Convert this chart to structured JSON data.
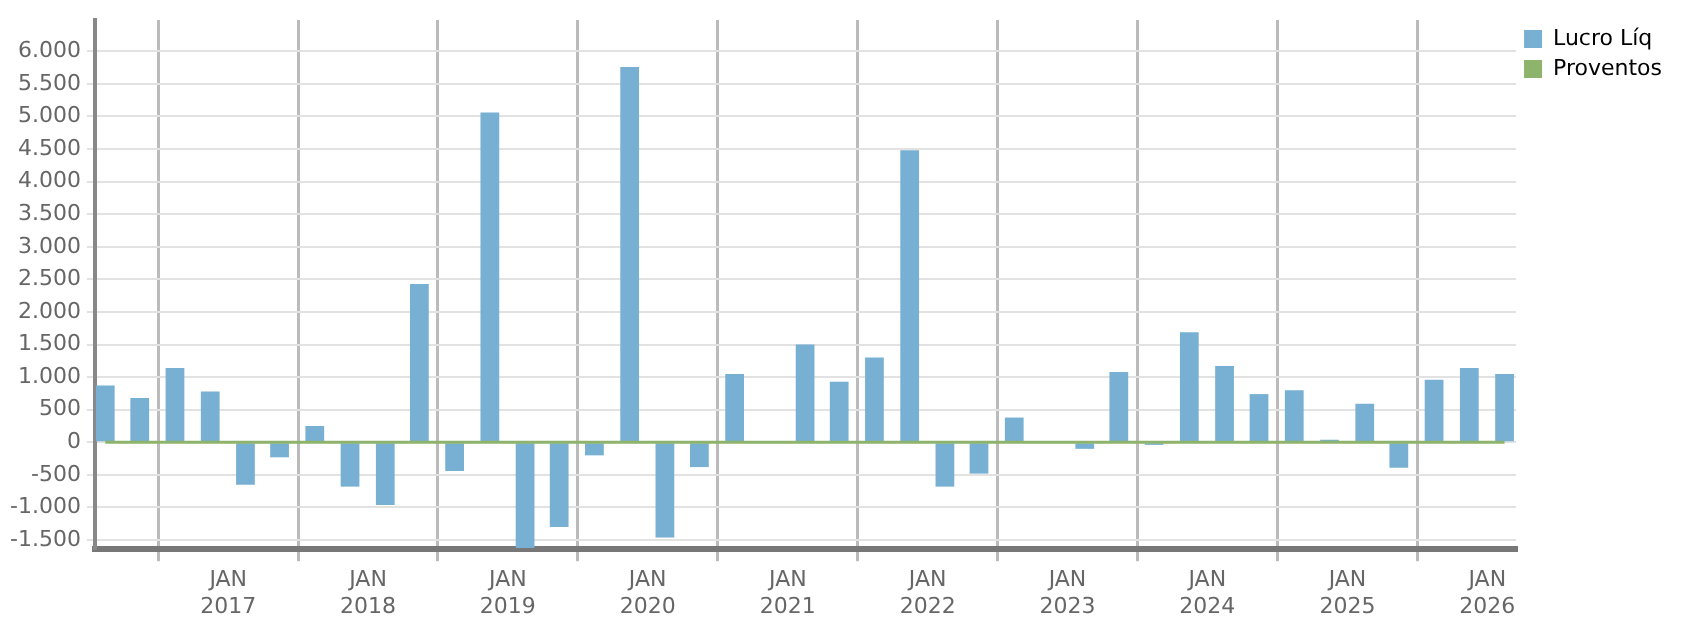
{
  "chart_data": {
    "type": "bar",
    "x": [
      "2016-02-15",
      "2016-05-15",
      "2016-08-15",
      "2016-11-15",
      "2017-02-15",
      "2017-05-15",
      "2017-08-15",
      "2017-11-15",
      "2018-02-15",
      "2018-05-15",
      "2018-08-15",
      "2018-11-15",
      "2019-02-15",
      "2019-05-15",
      "2019-08-15",
      "2019-11-15",
      "2020-02-15",
      "2020-05-15",
      "2020-08-15",
      "2020-11-15",
      "2021-02-15",
      "2021-05-15",
      "2021-08-15",
      "2021-11-15",
      "2022-02-15",
      "2022-05-15",
      "2022-08-15",
      "2022-11-15",
      "2023-02-15",
      "2023-05-15",
      "2023-08-15",
      "2023-11-15",
      "2024-02-15",
      "2024-05-15",
      "2024-08-15",
      "2024-11-15",
      "2025-02-15",
      "2025-05-15",
      "2025-08-15",
      "2025-11-15",
      "2026-02-15"
    ],
    "series": [
      {
        "name": "Lucro Líq",
        "color": "#77b0d3",
        "values": [
          870,
          680,
          1140,
          780,
          -650,
          -230,
          250,
          -680,
          -960,
          2430,
          -440,
          5060,
          -1620,
          -1300,
          -200,
          5760,
          -1460,
          -380,
          1050,
          null,
          1500,
          930,
          1300,
          4480,
          -680,
          -480,
          380,
          null,
          -100,
          1080,
          -40,
          1690,
          1170,
          740,
          800,
          40,
          590,
          -390,
          960,
          1140,
          1050
        ]
      },
      {
        "name": "Proventos",
        "color": "#8db36c",
        "type": "line",
        "values": [
          0,
          0,
          0,
          0,
          0,
          0,
          0,
          0,
          0,
          0,
          0,
          0,
          0,
          0,
          0,
          0,
          0,
          0,
          0,
          0,
          0,
          0,
          0,
          0,
          0,
          0,
          0,
          0,
          0,
          0,
          0,
          0,
          0,
          0,
          0,
          0,
          0,
          0,
          0,
          0,
          0
        ]
      }
    ],
    "xlim": [
      "2016-01-19",
      "2026-03-17"
    ],
    "xticks": [
      {
        "value": "2017-01-01",
        "label": "JAN\n2017"
      },
      {
        "value": "2018-01-01",
        "label": "JAN\n2018"
      },
      {
        "value": "2019-01-01",
        "label": "JAN\n2019"
      },
      {
        "value": "2020-01-01",
        "label": "JAN\n2020"
      },
      {
        "value": "2021-01-01",
        "label": "JAN\n2021"
      },
      {
        "value": "2022-01-01",
        "label": "JAN\n2022"
      },
      {
        "value": "2023-01-01",
        "label": "JAN\n2023"
      },
      {
        "value": "2024-01-01",
        "label": "JAN\n2024"
      },
      {
        "value": "2025-01-01",
        "label": "JAN\n2025"
      },
      {
        "value": "2026-01-01",
        "label": "JAN\n2026"
      }
    ],
    "ylim": [
      -1640,
      6480
    ],
    "yticks": [
      {
        "value": -1500,
        "label": "-1.500"
      },
      {
        "value": -1000,
        "label": "-1.000"
      },
      {
        "value": -500,
        "label": "-500"
      },
      {
        "value": 0,
        "label": "0"
      },
      {
        "value": 500,
        "label": "500"
      },
      {
        "value": 1000,
        "label": "1.000"
      },
      {
        "value": 1500,
        "label": "1.500"
      },
      {
        "value": 2000,
        "label": "2.000"
      },
      {
        "value": 2500,
        "label": "2.500"
      },
      {
        "value": 3000,
        "label": "3.000"
      },
      {
        "value": 3500,
        "label": "3.500"
      },
      {
        "value": 4000,
        "label": "4.000"
      },
      {
        "value": 4500,
        "label": "4.500"
      },
      {
        "value": 5000,
        "label": "5.000"
      },
      {
        "value": 5500,
        "label": "5.500"
      },
      {
        "value": 6000,
        "label": "6.000"
      }
    ],
    "grid": true,
    "legend": "top right",
    "marker": "none"
  }
}
